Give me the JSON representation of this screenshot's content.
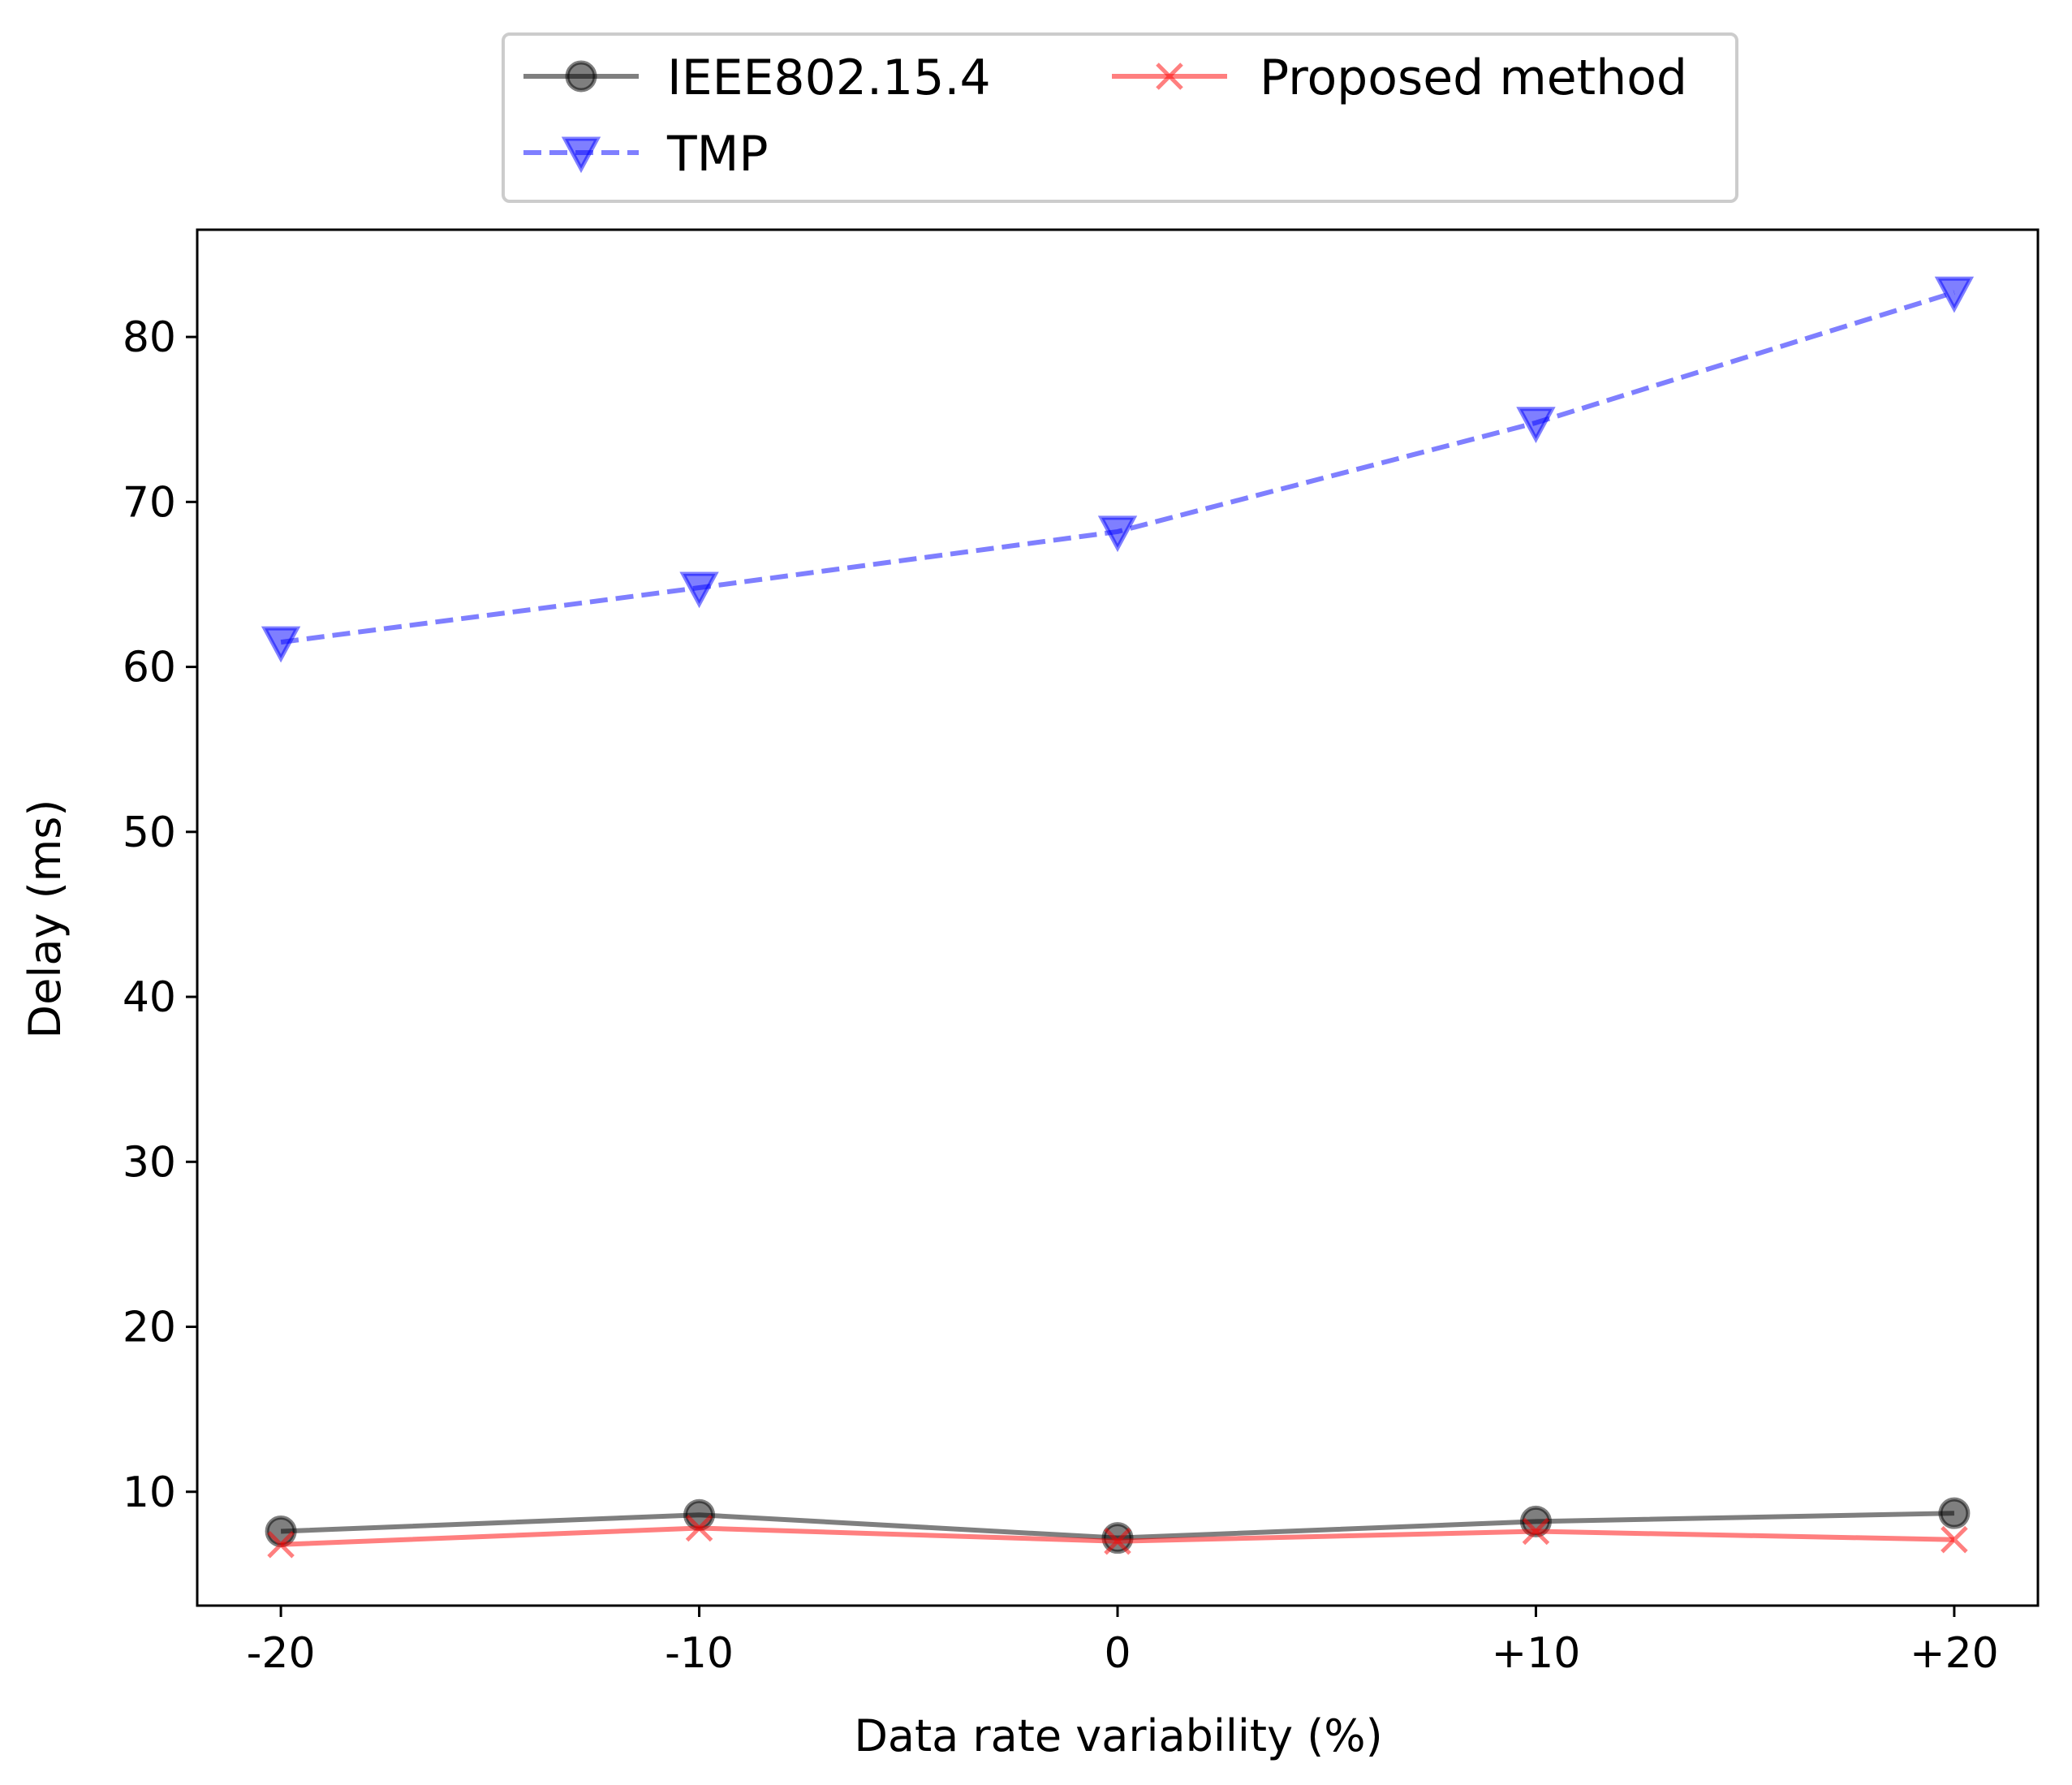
{
  "chart_data": {
    "type": "line",
    "title": "",
    "xlabel": "Data rate variability (%)",
    "ylabel": "Delay (ms)",
    "categories": [
      "-20",
      "-10",
      "0",
      "+10",
      "+20"
    ],
    "x": [
      -20,
      -10,
      0,
      10,
      20
    ],
    "xlim": [
      -22,
      22
    ],
    "ylim": [
      3.1,
      86.5
    ],
    "yticks": [
      10,
      20,
      30,
      40,
      50,
      60,
      70,
      80
    ],
    "grid": false,
    "legend_position": "upper-center-outside",
    "series": [
      {
        "name": "IEEE802.15.4",
        "values": [
          7.6,
          8.6,
          7.2,
          8.2,
          8.7
        ],
        "color": "#000000",
        "linestyle": "solid",
        "marker": "circle"
      },
      {
        "name": "TMP",
        "values": [
          61.5,
          64.8,
          68.2,
          74.8,
          82.7
        ],
        "color": "#0000ff",
        "linestyle": "dashed",
        "marker": "triangle-down"
      },
      {
        "name": "Proposed method",
        "values": [
          6.8,
          7.8,
          7.0,
          7.6,
          7.1
        ],
        "color": "#ff0000",
        "linestyle": "solid",
        "marker": "x"
      }
    ]
  }
}
